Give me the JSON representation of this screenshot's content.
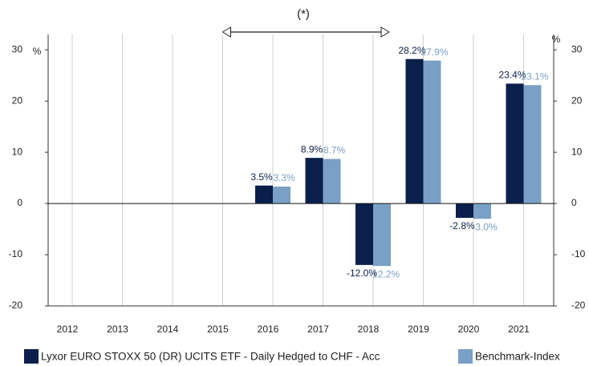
{
  "chart_data": {
    "type": "bar",
    "annotation": "(*)",
    "y_label": "%",
    "y2_label": "%",
    "categories": [
      "2012",
      "2013",
      "2014",
      "2015",
      "2016",
      "2017",
      "2018",
      "2019",
      "2020",
      "2021"
    ],
    "series": [
      {
        "name": "Lyxor EURO STOXX 50 (DR) UCITS ETF - Daily Hedged to CHF - Acc",
        "color": "#0b1f4b",
        "values": [
          null,
          null,
          null,
          null,
          3.5,
          8.9,
          -12.0,
          28.2,
          -2.8,
          23.4
        ],
        "value_labels": [
          null,
          null,
          null,
          null,
          "3.5%",
          "8.9%",
          "-12.0%",
          "28.2%",
          "-2.8%",
          "23.4%"
        ]
      },
      {
        "name": "Benchmark-Index",
        "color": "#7aa0c6",
        "values": [
          null,
          null,
          null,
          null,
          3.3,
          8.7,
          -12.2,
          27.9,
          -3.0,
          23.1
        ],
        "value_labels": [
          null,
          null,
          null,
          null,
          "3.3%",
          "8.7%",
          "-12.2%",
          "27.9%",
          "-3.0%",
          "23.1%"
        ]
      }
    ],
    "ylim": [
      -20,
      33
    ],
    "yticks": [
      -20,
      -10,
      0,
      10,
      20,
      30
    ],
    "y2lim": [
      -20,
      33
    ],
    "y2ticks": [
      -20,
      -10,
      0,
      10,
      20,
      30
    ],
    "grid": true,
    "legend": "bottom"
  }
}
